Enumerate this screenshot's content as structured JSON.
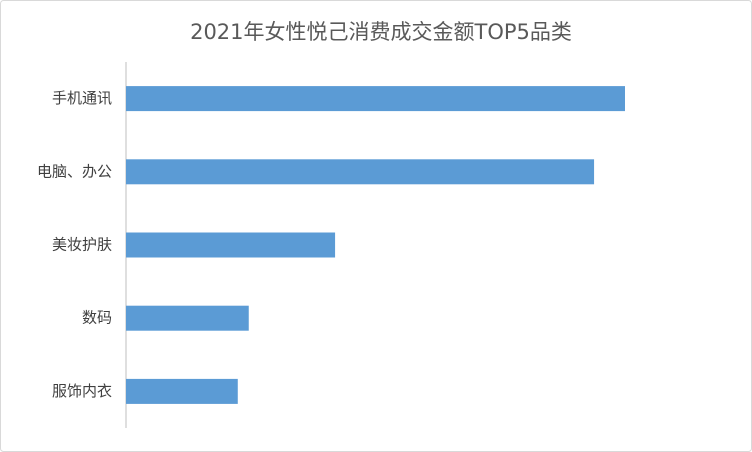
{
  "chart_data": {
    "type": "bar",
    "orientation": "horizontal",
    "title": "2021年女性悦己消费成交金额TOP5品类",
    "categories": [
      "手机通讯",
      "电脑、办公",
      "美妆护肤",
      "数码",
      "服饰内衣"
    ],
    "values": [
      100,
      93.8,
      41.9,
      24.6,
      22.4
    ],
    "color": "#5b9bd5",
    "xlim": [
      0,
      100
    ]
  }
}
